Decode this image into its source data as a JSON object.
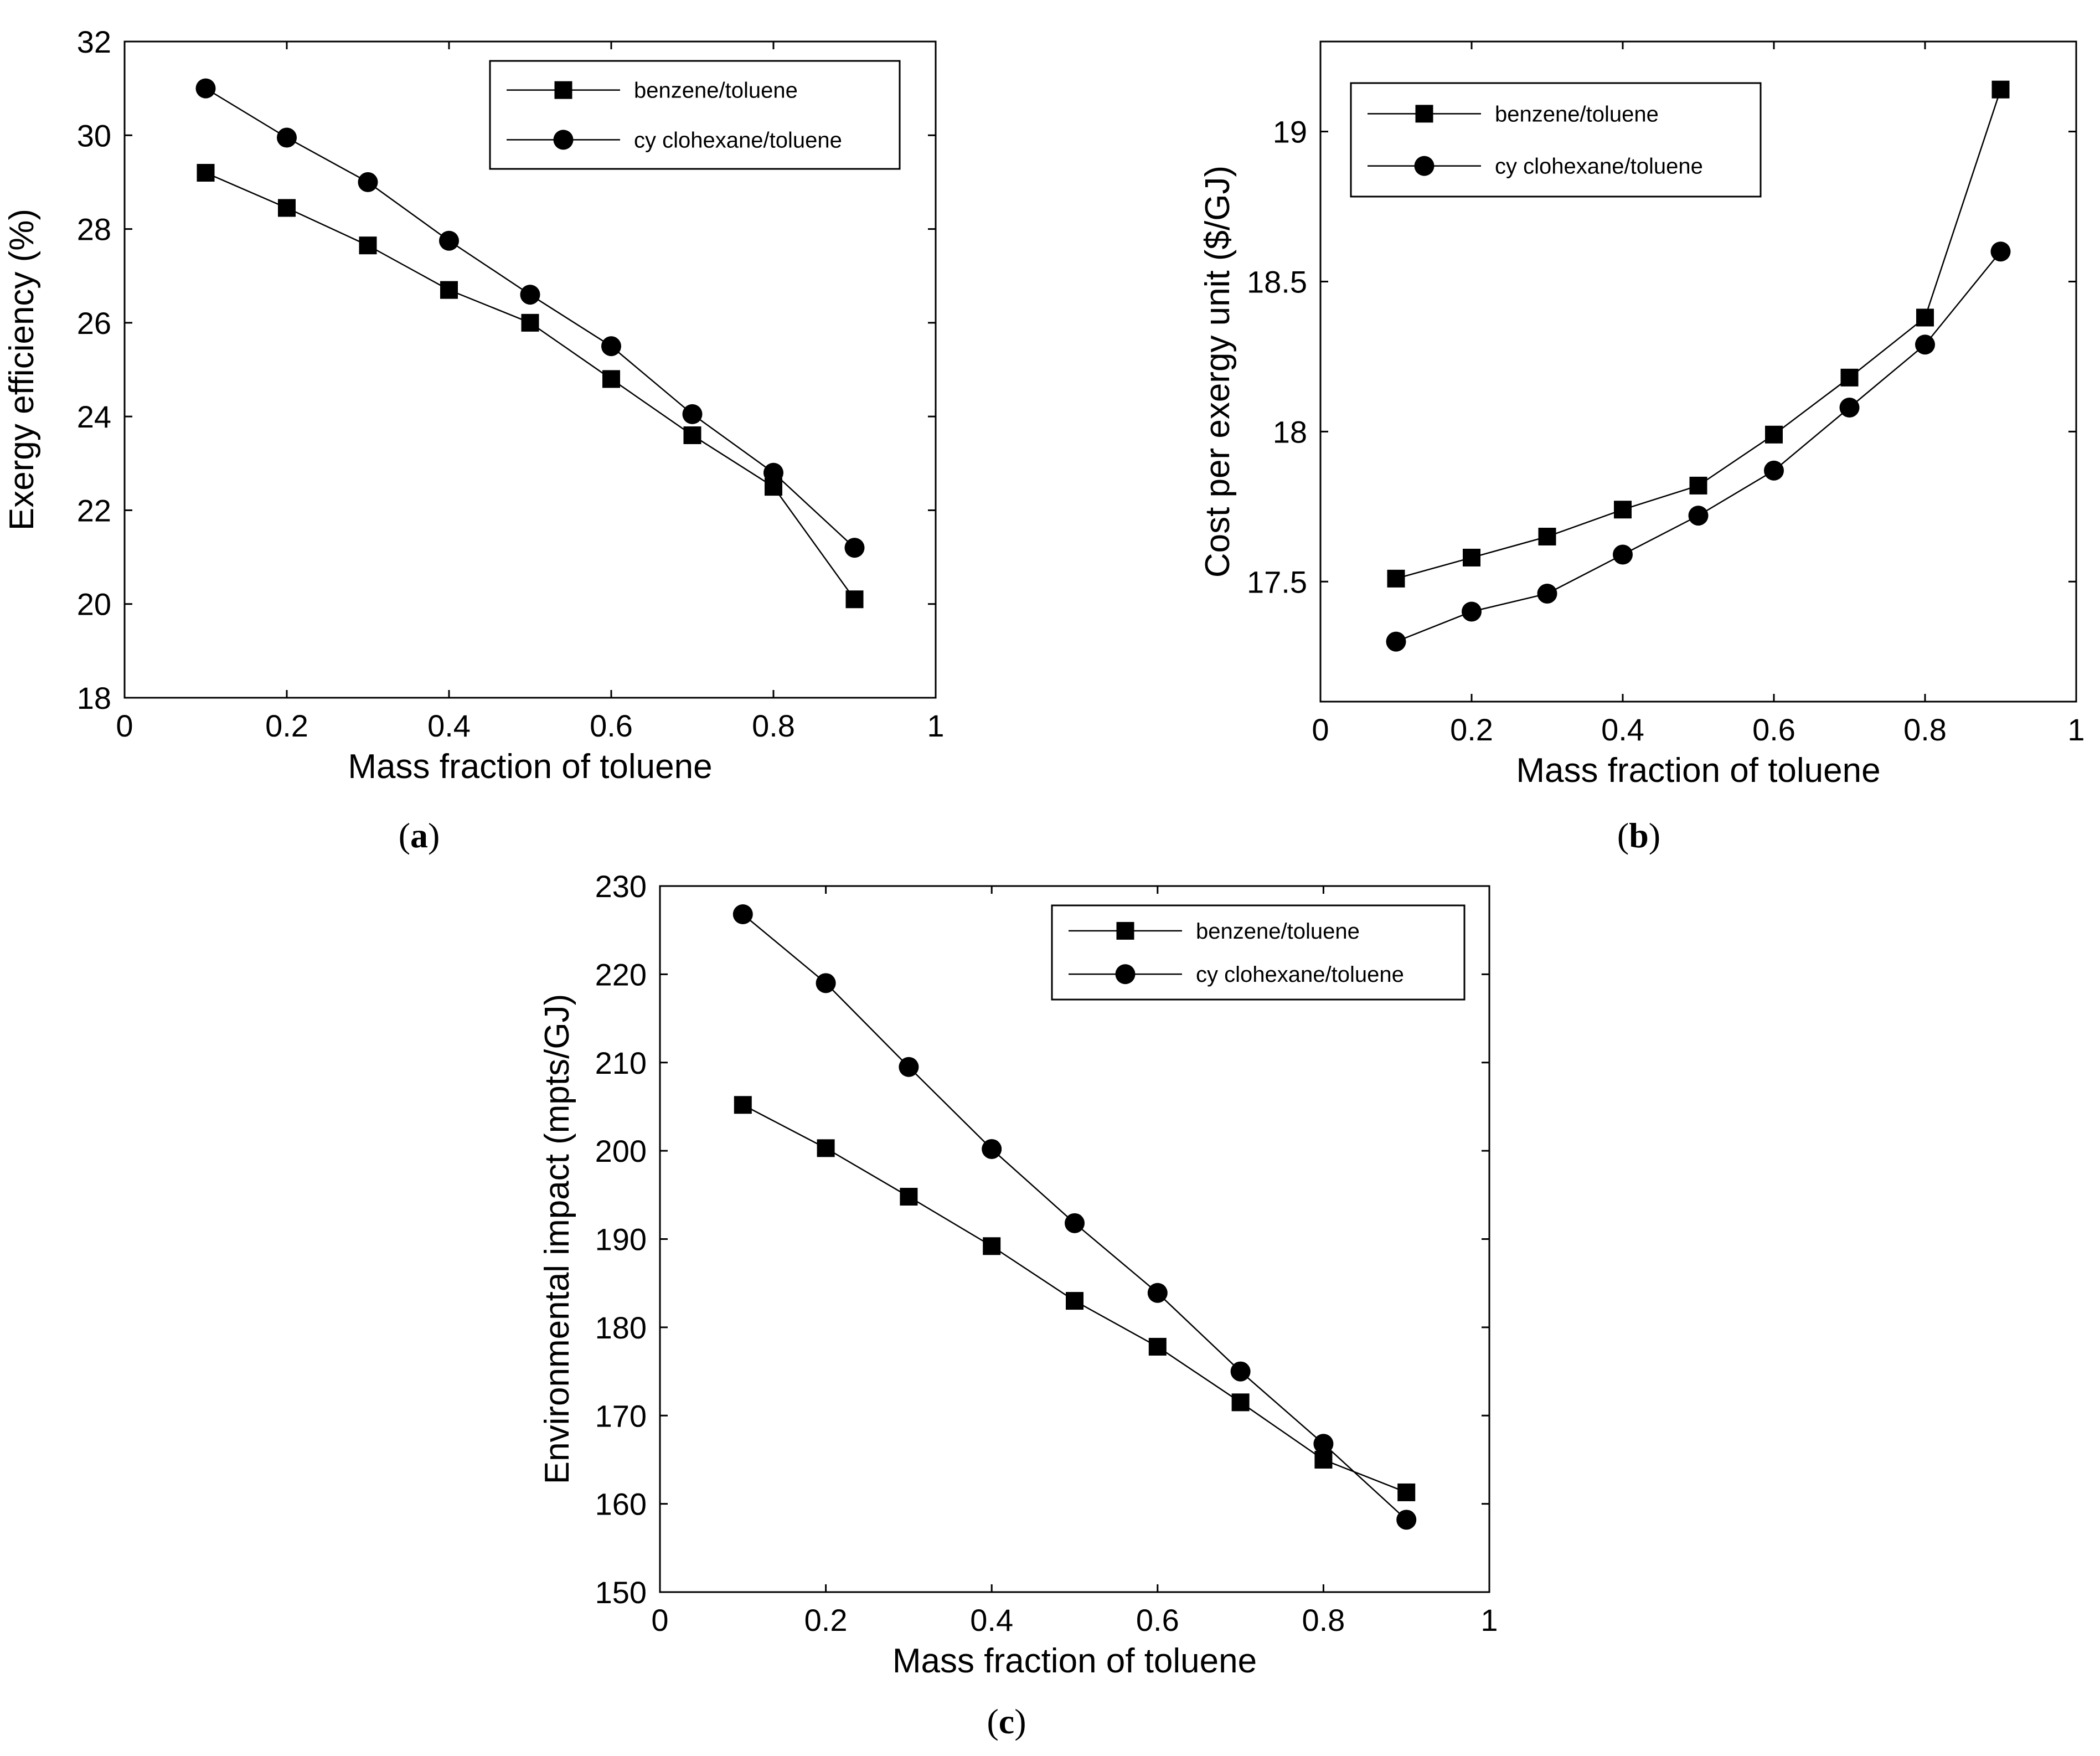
{
  "chart_data": [
    {
      "panel": "a",
      "caption_paren_open": "(",
      "caption_letter": "a",
      "caption_paren_close": ")",
      "type": "line",
      "xlabel": "Mass fraction of toluene",
      "ylabel": "Exergy efficiency (%)",
      "xlim": [
        0,
        1
      ],
      "ylim": [
        18,
        32
      ],
      "xticks": [
        0,
        0.2,
        0.4,
        0.6,
        0.8,
        1
      ],
      "xtick_labels": [
        "0",
        "0.2",
        "0.4",
        "0.6",
        "0.8",
        "1"
      ],
      "yticks": [
        18,
        20,
        22,
        24,
        26,
        28,
        30,
        32
      ],
      "ytick_labels": [
        "18",
        "20",
        "22",
        "24",
        "26",
        "28",
        "30",
        "32"
      ],
      "legend_position": "top-right",
      "x": [
        0.1,
        0.2,
        0.3,
        0.4,
        0.5,
        0.6,
        0.7,
        0.8,
        0.9
      ],
      "series": [
        {
          "name": "benzene/toluene",
          "marker": "square",
          "values": [
            29.2,
            28.45,
            27.65,
            26.7,
            26.0,
            24.8,
            23.6,
            22.5,
            20.1
          ]
        },
        {
          "name": "cy clohexane/toluene",
          "marker": "circle",
          "values": [
            31.0,
            29.95,
            29.0,
            27.75,
            26.6,
            25.5,
            24.05,
            22.8,
            21.2
          ]
        }
      ]
    },
    {
      "panel": "b",
      "caption_paren_open": "(",
      "caption_letter": "b",
      "caption_paren_close": ")",
      "type": "line",
      "xlabel": "Mass fraction of toluene",
      "ylabel": "Cost per exergy unit ($/GJ)",
      "xlim": [
        0,
        1
      ],
      "ylim": [
        17.1,
        19.3
      ],
      "xticks": [
        0,
        0.2,
        0.4,
        0.6,
        0.8,
        1
      ],
      "xtick_labels": [
        "0",
        "0.2",
        "0.4",
        "0.6",
        "0.8",
        "1"
      ],
      "yticks": [
        17.5,
        18,
        18.5,
        19
      ],
      "ytick_labels": [
        "17.5",
        "18",
        "18.5",
        "19"
      ],
      "legend_position": "top-left",
      "x": [
        0.1,
        0.2,
        0.3,
        0.4,
        0.5,
        0.6,
        0.7,
        0.8,
        0.9
      ],
      "series": [
        {
          "name": "benzene/toluene",
          "marker": "square",
          "values": [
            17.51,
            17.58,
            17.65,
            17.74,
            17.82,
            17.99,
            18.18,
            18.38,
            19.14
          ]
        },
        {
          "name": "cy clohexane/toluene",
          "marker": "circle",
          "values": [
            17.3,
            17.4,
            17.46,
            17.59,
            17.72,
            17.87,
            18.08,
            18.29,
            18.6
          ]
        }
      ]
    },
    {
      "panel": "c",
      "caption_paren_open": "(",
      "caption_letter": "c",
      "caption_paren_close": ")",
      "type": "line",
      "xlabel": "Mass fraction of toluene",
      "ylabel": "Environmental impact (mpts/GJ)",
      "xlim": [
        0,
        1
      ],
      "ylim": [
        150,
        230
      ],
      "xticks": [
        0,
        0.2,
        0.4,
        0.6,
        0.8,
        1
      ],
      "xtick_labels": [
        "0",
        "0.2",
        "0.4",
        "0.6",
        "0.8",
        "1"
      ],
      "yticks": [
        150,
        160,
        170,
        180,
        190,
        200,
        210,
        220,
        230
      ],
      "ytick_labels": [
        "150",
        "160",
        "170",
        "180",
        "190",
        "200",
        "210",
        "220",
        "230"
      ],
      "legend_position": "top-right",
      "x": [
        0.1,
        0.2,
        0.3,
        0.4,
        0.5,
        0.6,
        0.7,
        0.8,
        0.9
      ],
      "series": [
        {
          "name": "benzene/toluene",
          "marker": "square",
          "values": [
            205.2,
            200.3,
            194.8,
            189.2,
            183.0,
            177.8,
            171.5,
            165.0,
            161.3
          ]
        },
        {
          "name": "cy clohexane/toluene",
          "marker": "circle",
          "values": [
            226.8,
            219.0,
            209.5,
            200.2,
            191.8,
            183.9,
            175.0,
            166.8,
            158.2
          ]
        }
      ]
    }
  ]
}
